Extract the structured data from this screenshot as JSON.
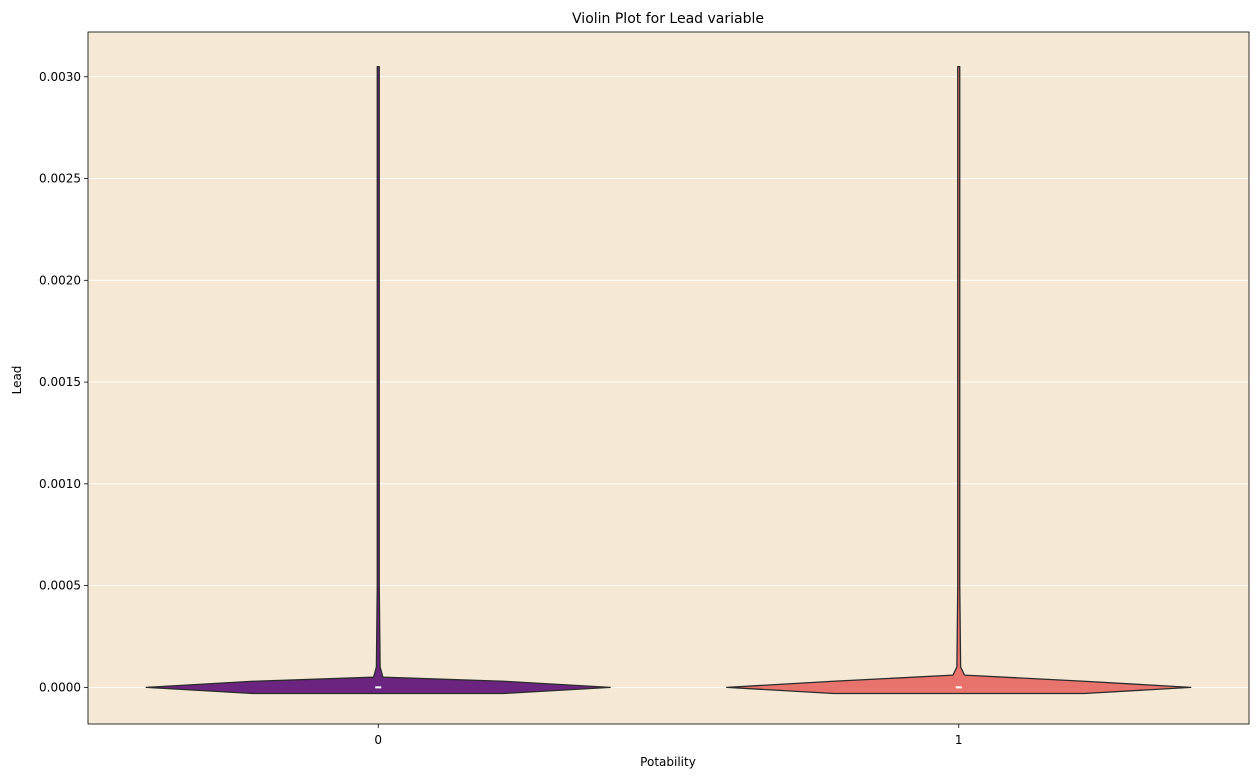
{
  "chart_data": {
    "type": "violin",
    "title": "Violin Plot for Lead variable",
    "xlabel": "Potability",
    "ylabel": "Lead",
    "categories": [
      "0",
      "1"
    ],
    "ylim": [
      -0.00018,
      0.00322
    ],
    "yticks": [
      0.0,
      0.0005,
      0.001,
      0.0015,
      0.002,
      0.0025,
      0.003
    ],
    "ytick_labels": [
      "0.0000",
      "0.0005",
      "0.0010",
      "0.0015",
      "0.0020",
      "0.0025",
      "0.0030"
    ],
    "grid": "y",
    "background_color": "#f5e9d5",
    "series": [
      {
        "category": "0",
        "color": "#6b2480",
        "min": -3e-05,
        "max": 0.00305,
        "median": 0.0,
        "profile": [
          [
            -3e-05,
            0.54
          ],
          [
            0.0,
            1.0
          ],
          [
            3e-05,
            0.54
          ],
          [
            5e-05,
            0.02
          ],
          [
            0.0001,
            0.008
          ],
          [
            0.0005,
            0.004
          ],
          [
            0.001,
            0.004
          ],
          [
            0.002,
            0.004
          ],
          [
            0.00305,
            0.003
          ]
        ]
      },
      {
        "category": "1",
        "color": "#e8736c",
        "min": -3e-05,
        "max": 0.00305,
        "median": 0.0,
        "profile": [
          [
            -3e-05,
            0.54
          ],
          [
            0.0,
            1.0
          ],
          [
            3e-05,
            0.54
          ],
          [
            6e-05,
            0.025
          ],
          [
            0.0001,
            0.008
          ],
          [
            0.0005,
            0.004
          ],
          [
            0.001,
            0.004
          ],
          [
            0.002,
            0.004
          ],
          [
            0.00305,
            0.003
          ]
        ]
      }
    ]
  }
}
